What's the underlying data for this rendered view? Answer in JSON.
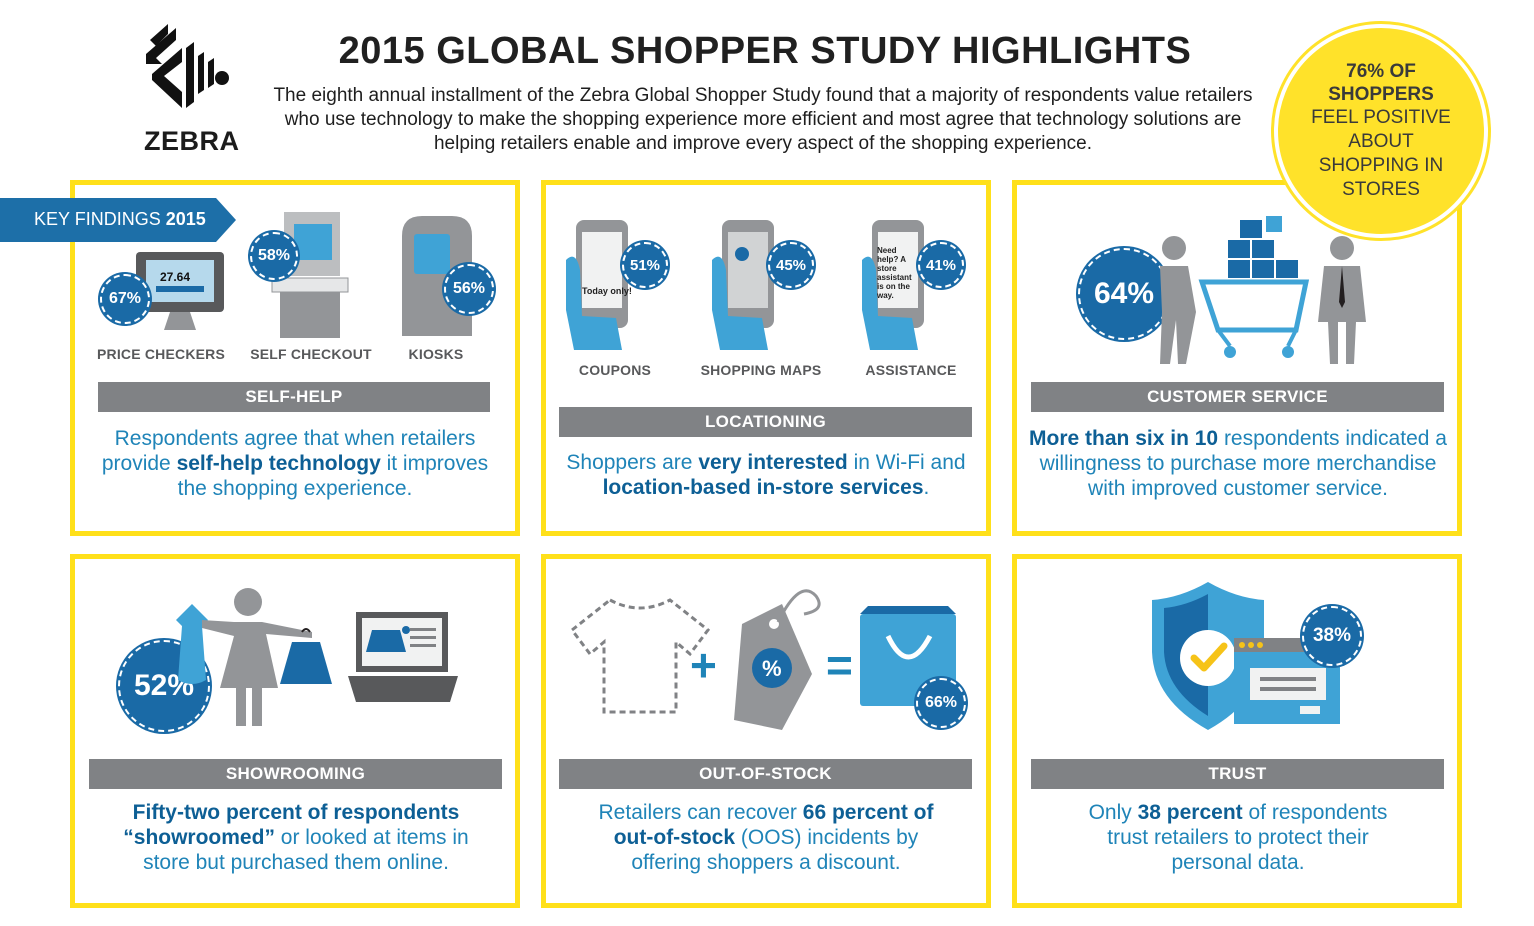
{
  "header": {
    "logo_text": "ZEBRA",
    "title": "2015 GLOBAL SHOPPER STUDY HIGHLIGHTS",
    "intro": "The eighth annual installment of the Zebra Global Shopper Study found that a majority of respondents value retailers who use technology to make the shopping experience more efficient and most agree that technology solutions are helping retailers enable and improve every aspect of the shopping experience."
  },
  "badge": {
    "line1": "76% OF",
    "line2": "SHOPPERS",
    "line3": "FEEL POSITIVE",
    "line4": "ABOUT",
    "line5": "SHOPPING IN",
    "line6": "STORES"
  },
  "ribbon": {
    "label": "KEY FINDINGS",
    "year": "2015"
  },
  "self_help": {
    "items": [
      {
        "pct": "67%",
        "caption": "PRICE CHECKERS",
        "screen_value": "27.64"
      },
      {
        "pct": "58%",
        "caption": "SELF CHECKOUT"
      },
      {
        "pct": "56%",
        "caption": "KIOSKS"
      }
    ],
    "bar": "SELF-HELP",
    "desc_1": "Respondents agree that when retailers provide ",
    "desc_bold": "self-help technology",
    "desc_2": " it improves the shopping experience."
  },
  "locationing": {
    "items": [
      {
        "pct": "51%",
        "caption": "COUPONS",
        "screen_text": "Today only!"
      },
      {
        "pct": "45%",
        "caption": "SHOPPING MAPS"
      },
      {
        "pct": "41%",
        "caption": "ASSISTANCE",
        "screen_text": "Need help? A store assistant is on the way."
      }
    ],
    "bar": "LOCATIONING",
    "desc_1": "Shoppers are ",
    "desc_bold1": "very interested",
    "desc_2": " in Wi-Fi and ",
    "desc_bold2": "location-based in-store services",
    "desc_3": "."
  },
  "customer_service": {
    "pct": "64%",
    "bar": "CUSTOMER SERVICE",
    "desc_bold": "More than six in 10",
    "desc_1": " respondents indicated a willingness to purchase more merchandise with improved customer service."
  },
  "showrooming": {
    "pct": "52%",
    "bar": "SHOWROOMING",
    "desc_bold": "Fifty-two percent of respondents “showroomed”",
    "desc_1": " or looked at items in store but purchased them online."
  },
  "out_of_stock": {
    "pct": "66%",
    "plus": "+",
    "equals": "=",
    "tag_symbol": "%",
    "bar": "OUT-OF-STOCK",
    "desc_1": "Retailers can recover ",
    "desc_bold": "66 percent of out-of-stock",
    "desc_2": " (OOS) incidents by offering shoppers a discount."
  },
  "trust": {
    "pct": "38%",
    "bar": "TRUST",
    "desc_1": "Only ",
    "desc_bold": "38 percent",
    "desc_2": " of respondents trust retailers to protect their personal data."
  },
  "colors": {
    "yellow": "#ffe01a",
    "blue_dark": "#1a6aa6",
    "blue_text": "#1f84b8",
    "gray_bar": "#808285",
    "gray_icon": "#939598"
  }
}
